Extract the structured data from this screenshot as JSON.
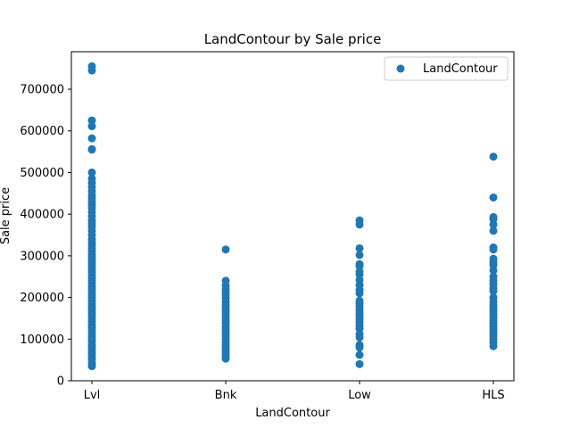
{
  "chart_data": {
    "type": "scatter",
    "title": "LandContour by Sale price",
    "xlabel": "LandContour",
    "ylabel": "Sale price",
    "categories": [
      "Lvl",
      "Bnk",
      "Low",
      "HLS"
    ],
    "ylim": [
      0,
      790000
    ],
    "yticks": [
      0,
      100000,
      200000,
      300000,
      400000,
      500000,
      600000,
      700000
    ],
    "grid": false,
    "legend": {
      "placement": "top-right",
      "label": "LandContour"
    },
    "color": "#1f77b4",
    "series": [
      {
        "name": "LandContour",
        "points": [
          {
            "x": "Lvl",
            "ys": [
              755000,
              745000,
              625000,
              611000,
              582000,
              556000,
              555000,
              500000,
              485000,
              475000,
              465000,
              455000,
              445000,
              438000,
              430000,
              423000,
              415000,
              405000,
              395000,
              385000,
              378000,
              370000,
              360000,
              350000,
              340000,
              332000,
              325000,
              318000,
              310000,
              303000,
              296000,
              289000,
              282000,
              275000,
              268000,
              261000,
              254000,
              247000,
              240000,
              233000,
              226000,
              219000,
              212000,
              205000,
              198000,
              191000,
              184000,
              177000,
              170000,
              163000,
              156000,
              149000,
              142000,
              135000,
              128000,
              121000,
              114000,
              107000,
              100000,
              93000,
              86000,
              79000,
              72000,
              65000,
              58000,
              51000,
              44000,
              37000,
              35000
            ]
          },
          {
            "x": "Bnk",
            "ys": [
              315000,
              240000,
              228000,
              220000,
              212000,
              205000,
              198000,
              190000,
              182000,
              175000,
              167000,
              160000,
              152000,
              145000,
              138000,
              130000,
              123000,
              116000,
              108000,
              100000,
              93000,
              86000,
              79000,
              72000,
              65000,
              58000,
              53000
            ]
          },
          {
            "x": "Low",
            "ys": [
              385000,
              375000,
              318000,
              302000,
              280000,
              275000,
              262000,
              255000,
              242000,
              230000,
              218000,
              210000,
              192000,
              185000,
              178000,
              170000,
              162000,
              155000,
              148000,
              140000,
              132000,
              125000,
              112000,
              104000,
              86000,
              80000,
              62000,
              40000
            ]
          },
          {
            "x": "HLS",
            "ys": [
              538000,
              440000,
              393000,
              388000,
              375000,
              360000,
              320000,
              315000,
              293000,
              285000,
              278000,
              265000,
              250000,
              240000,
              232000,
              222000,
              215000,
              200000,
              190000,
              182000,
              175000,
              168000,
              160000,
              152000,
              145000,
              138000,
              130000,
              122000,
              115000,
              108000,
              100000,
              92000,
              83000
            ]
          }
        ]
      }
    ]
  }
}
